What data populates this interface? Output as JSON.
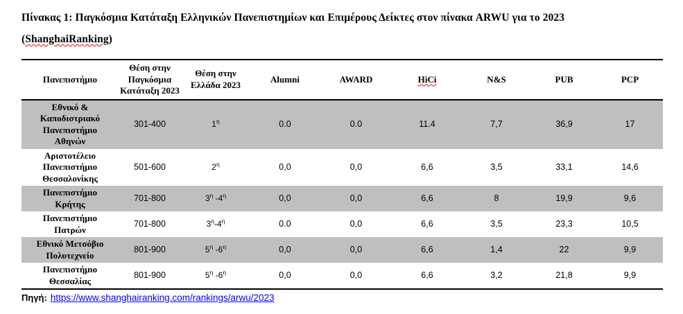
{
  "title": {
    "line1": "Πίνακας 1: Παγκόσμια  Κατάταξη Ελληνικών Πανεπιστημίων και Επιμέρους Δείκτες στον πίνακα ARWU για το 2023",
    "line2_prefix": "(",
    "line2_word": "ShanghaiRanking",
    "line2_suffix": ")"
  },
  "table": {
    "headers": [
      "Πανεπιστήμιο",
      "Θέση στην Παγκόσμια Κατάταξη 2023",
      "Θέση στην Ελλάδα 2023",
      "Alumni",
      "AWARD",
      "HiCi",
      "N&S",
      "PUB",
      "PCP"
    ],
    "misspelled_words": [
      "HiCi",
      "ShanghaiRanking"
    ],
    "rows": [
      {
        "university": "Εθνικό & Καποδιστριακό Πανεπιστήμιο Αθηνών",
        "world_rank_2023": "301-400",
        "greece_rank_2023": "1η",
        "alumni": "0.0",
        "award": "0.0",
        "hici": "11.4",
        "ns": "7,7",
        "pub": "36,9",
        "pcp": "17",
        "shaded": true
      },
      {
        "university": "Αριστοτέλειο Πανεπιστήμιο Θεσσαλονίκης",
        "world_rank_2023": "501-600",
        "greece_rank_2023": "2η",
        "alumni": "0,0",
        "award": "0,0",
        "hici": "6,6",
        "ns": "3,5",
        "pub": "33,1",
        "pcp": "14,6",
        "shaded": false
      },
      {
        "university": "Πανεπιστήμιο Κρήτης",
        "world_rank_2023": "701-800",
        "greece_rank_2023": "3η -4η",
        "alumni": "0,0",
        "award": "0,0",
        "hici": "6,6",
        "ns": "8",
        "pub": "19,9",
        "pcp": "9,6",
        "shaded": true
      },
      {
        "university": "Πανεπιστήμιο Πατρών",
        "world_rank_2023": "701-800",
        "greece_rank_2023": "3η-4η",
        "alumni": "0.0",
        "award": "0,0",
        "hici": "6,6",
        "ns": "3,5",
        "pub": "23,3",
        "pcp": "10,5",
        "shaded": false
      },
      {
        "university": "Εθνικό Μετσόβιο Πολυτεχνείο",
        "world_rank_2023": "801-900",
        "greece_rank_2023": "5η -6η",
        "alumni": "0,0",
        "award": "0,0",
        "hici": "6,6",
        "ns": "1,4",
        "pub": "22",
        "pcp": "9,9",
        "shaded": true
      },
      {
        "university": "Πανεπιστήμιο Θεσσαλίας",
        "world_rank_2023": "801-900",
        "greece_rank_2023": "5η -6η",
        "alumni": "0,0",
        "award": "0,0",
        "hici": "6,6",
        "ns": "3,2",
        "pub": "21,8",
        "pcp": "9,9",
        "shaded": false
      }
    ]
  },
  "footer": {
    "label": "Πηγή:",
    "link_text": "https://www.shanghairanking.com/rankings/arwu/2023"
  },
  "colors": {
    "row_shade": "#bfbfbf",
    "link_blue": "#0000ff",
    "spellcheck_red": "#ff0000",
    "border_black": "#000000"
  }
}
